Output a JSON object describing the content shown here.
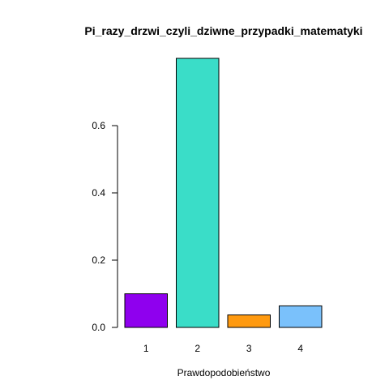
{
  "chart_data": {
    "type": "bar",
    "title": "Pi_razy_drzwi_czyli_dziwne_przypadki_matematyki",
    "xlabel": "Prawdopodobieństwo",
    "ylabel": "",
    "categories": [
      "1",
      "2",
      "3",
      "4"
    ],
    "values": [
      0.1,
      0.8,
      0.037,
      0.064
    ],
    "colors": [
      "#8F00EE",
      "#3ADDC8",
      "#FF9A10",
      "#7AC1FB"
    ],
    "y_ticks": [
      0.0,
      0.2,
      0.4,
      0.6
    ],
    "y_tick_labels": [
      "0.0",
      "0.2",
      "0.4",
      "0.6"
    ],
    "ylim": [
      0,
      0.8
    ],
    "grid": false,
    "legend": "none"
  }
}
